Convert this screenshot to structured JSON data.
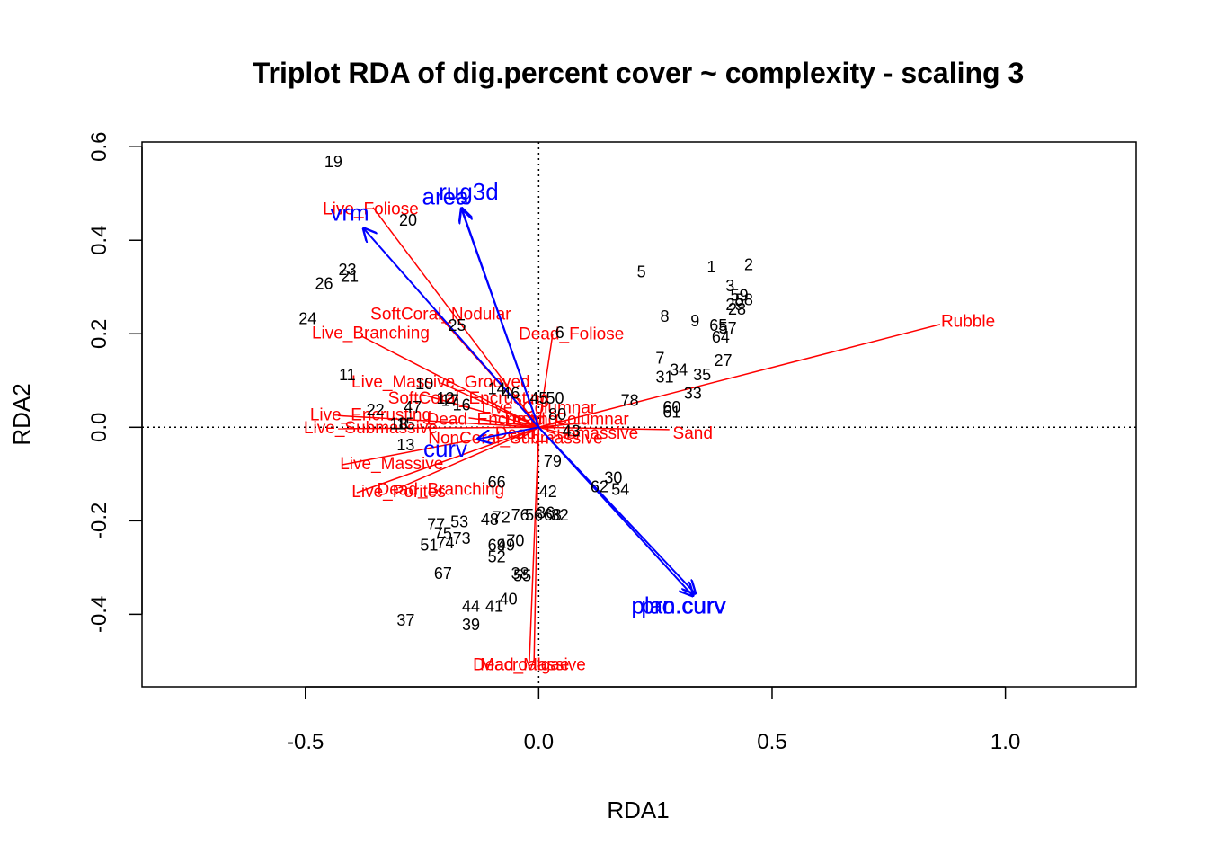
{
  "chart_data": {
    "type": "scatter",
    "title": "Triplot RDA of dig.percent cover ~ complexity  - scaling 3",
    "xlabel": "RDA1",
    "ylabel": "RDA2",
    "xlim": [
      -0.85,
      1.28
    ],
    "ylim": [
      -0.555,
      0.61
    ],
    "x_ticks": [
      -0.5,
      0.0,
      0.5,
      1.0
    ],
    "y_ticks": [
      -0.4,
      -0.2,
      0.0,
      0.2,
      0.4,
      0.6
    ],
    "x_tick_labels": [
      "-0.5",
      "0.0",
      "0.5",
      "1.0"
    ],
    "y_tick_labels": [
      "-0.4",
      "-0.2",
      "0.0",
      "0.2",
      "0.4",
      "0.6"
    ],
    "reference_lines": {
      "x": 0,
      "y": 0
    },
    "colors": {
      "species": "#ff0000",
      "env": "#0000ff",
      "sites": "#000000"
    },
    "sites": [
      {
        "label": "19",
        "x": -0.44,
        "y": 0.565
      },
      {
        "label": "20",
        "x": -0.28,
        "y": 0.44
      },
      {
        "label": "23",
        "x": -0.41,
        "y": 0.335
      },
      {
        "label": "21",
        "x": -0.405,
        "y": 0.32
      },
      {
        "label": "26",
        "x": -0.46,
        "y": 0.305
      },
      {
        "label": "24",
        "x": -0.495,
        "y": 0.23
      },
      {
        "label": "25",
        "x": -0.175,
        "y": 0.215
      },
      {
        "label": "11",
        "x": -0.41,
        "y": 0.11
      },
      {
        "label": "10",
        "x": -0.245,
        "y": 0.09
      },
      {
        "label": "22",
        "x": -0.35,
        "y": 0.035
      },
      {
        "label": "47",
        "x": -0.27,
        "y": 0.04
      },
      {
        "label": "12",
        "x": -0.2,
        "y": 0.06
      },
      {
        "label": "17",
        "x": -0.19,
        "y": 0.055
      },
      {
        "label": "16",
        "x": -0.165,
        "y": 0.045
      },
      {
        "label": "14",
        "x": -0.09,
        "y": 0.08
      },
      {
        "label": "46",
        "x": -0.06,
        "y": 0.07
      },
      {
        "label": "18",
        "x": -0.3,
        "y": 0.005
      },
      {
        "label": "15",
        "x": -0.285,
        "y": 0.005
      },
      {
        "label": "13",
        "x": -0.285,
        "y": -0.04
      },
      {
        "label": "45",
        "x": 0.0,
        "y": 0.06
      },
      {
        "label": "50",
        "x": 0.035,
        "y": 0.06
      },
      {
        "label": "80",
        "x": 0.04,
        "y": 0.025
      },
      {
        "label": "78",
        "x": 0.195,
        "y": 0.055
      },
      {
        "label": "43",
        "x": 0.07,
        "y": -0.01
      },
      {
        "label": "6",
        "x": 0.045,
        "y": 0.2
      },
      {
        "label": "5",
        "x": 0.22,
        "y": 0.33
      },
      {
        "label": "1",
        "x": 0.37,
        "y": 0.34
      },
      {
        "label": "2",
        "x": 0.45,
        "y": 0.345
      },
      {
        "label": "3",
        "x": 0.41,
        "y": 0.3
      },
      {
        "label": "59",
        "x": 0.43,
        "y": 0.28
      },
      {
        "label": "58",
        "x": 0.44,
        "y": 0.27
      },
      {
        "label": "29",
        "x": 0.42,
        "y": 0.26
      },
      {
        "label": "28",
        "x": 0.425,
        "y": 0.25
      },
      {
        "label": "8",
        "x": 0.27,
        "y": 0.235
      },
      {
        "label": "9",
        "x": 0.335,
        "y": 0.225
      },
      {
        "label": "65",
        "x": 0.385,
        "y": 0.215
      },
      {
        "label": "57",
        "x": 0.405,
        "y": 0.21
      },
      {
        "label": "64",
        "x": 0.39,
        "y": 0.19
      },
      {
        "label": "27",
        "x": 0.395,
        "y": 0.14
      },
      {
        "label": "7",
        "x": 0.26,
        "y": 0.145
      },
      {
        "label": "34",
        "x": 0.3,
        "y": 0.12
      },
      {
        "label": "31",
        "x": 0.27,
        "y": 0.105
      },
      {
        "label": "35",
        "x": 0.35,
        "y": 0.11
      },
      {
        "label": "33",
        "x": 0.33,
        "y": 0.07
      },
      {
        "label": "60",
        "x": 0.285,
        "y": 0.04
      },
      {
        "label": "61",
        "x": 0.285,
        "y": 0.03
      },
      {
        "label": "79",
        "x": 0.03,
        "y": -0.075
      },
      {
        "label": "30",
        "x": 0.16,
        "y": -0.11
      },
      {
        "label": "62",
        "x": 0.13,
        "y": -0.13
      },
      {
        "label": "54",
        "x": 0.175,
        "y": -0.135
      },
      {
        "label": "66",
        "x": -0.09,
        "y": -0.12
      },
      {
        "label": "42",
        "x": 0.02,
        "y": -0.14
      },
      {
        "label": "77",
        "x": -0.22,
        "y": -0.21
      },
      {
        "label": "53",
        "x": -0.17,
        "y": -0.205
      },
      {
        "label": "48",
        "x": -0.105,
        "y": -0.2
      },
      {
        "label": "72",
        "x": -0.08,
        "y": -0.195
      },
      {
        "label": "76",
        "x": -0.04,
        "y": -0.19
      },
      {
        "label": "56",
        "x": -0.01,
        "y": -0.19
      },
      {
        "label": "36",
        "x": 0.015,
        "y": -0.185
      },
      {
        "label": "68",
        "x": 0.03,
        "y": -0.19
      },
      {
        "label": "32",
        "x": 0.045,
        "y": -0.19
      },
      {
        "label": "75",
        "x": -0.205,
        "y": -0.23
      },
      {
        "label": "73",
        "x": -0.165,
        "y": -0.24
      },
      {
        "label": "51",
        "x": -0.235,
        "y": -0.255
      },
      {
        "label": "74",
        "x": -0.2,
        "y": -0.25
      },
      {
        "label": "70",
        "x": -0.05,
        "y": -0.245
      },
      {
        "label": "69",
        "x": -0.09,
        "y": -0.255
      },
      {
        "label": "49",
        "x": -0.07,
        "y": -0.255
      },
      {
        "label": "52",
        "x": -0.09,
        "y": -0.28
      },
      {
        "label": "67",
        "x": -0.205,
        "y": -0.315
      },
      {
        "label": "38",
        "x": -0.04,
        "y": -0.315
      },
      {
        "label": "55",
        "x": -0.035,
        "y": -0.32
      },
      {
        "label": "40",
        "x": -0.065,
        "y": -0.37
      },
      {
        "label": "44",
        "x": -0.145,
        "y": -0.385
      },
      {
        "label": "41",
        "x": -0.095,
        "y": -0.385
      },
      {
        "label": "37",
        "x": -0.285,
        "y": -0.415
      },
      {
        "label": "39",
        "x": -0.145,
        "y": -0.425
      }
    ],
    "species": [
      {
        "label": "Live_Foliose",
        "x": -0.355,
        "y": 0.47,
        "lx": -0.36,
        "ly": 0.465
      },
      {
        "label": "SoftCoral_Nodular",
        "x": -0.22,
        "y": 0.245,
        "lx": -0.21,
        "ly": 0.24
      },
      {
        "label": "Live_Branching",
        "x": -0.38,
        "y": 0.195,
        "lx": -0.36,
        "ly": 0.2
      },
      {
        "label": "Dead_Foliose",
        "x": 0.03,
        "y": 0.2,
        "lx": 0.07,
        "ly": 0.198
      },
      {
        "label": "Rubble",
        "x": 0.86,
        "y": 0.22,
        "lx": 0.92,
        "ly": 0.225
      },
      {
        "label": "Live_Massive_Grooved",
        "x": -0.21,
        "y": 0.095,
        "lx": -0.21,
        "ly": 0.095
      },
      {
        "label": "SoftCoral_Encrusting",
        "x": -0.25,
        "y": 0.07,
        "lx": -0.15,
        "ly": 0.06
      },
      {
        "label": "Live_Encrusting",
        "x": -0.43,
        "y": 0.025,
        "lx": -0.36,
        "ly": 0.025
      },
      {
        "label": "Live_Submassive",
        "x": -0.43,
        "y": -0.003,
        "lx": -0.36,
        "ly": -0.003
      },
      {
        "label": "NonCoral_Submassive",
        "x": -0.05,
        "y": -0.03,
        "lx": -0.05,
        "ly": -0.025
      },
      {
        "label": "Sand",
        "x": 0.28,
        "y": -0.005,
        "lx": 0.33,
        "ly": -0.015
      },
      {
        "label": "Live_Massive",
        "x": -0.42,
        "y": -0.08,
        "lx": -0.315,
        "ly": -0.08
      },
      {
        "label": "Live_Porites",
        "x": -0.39,
        "y": -0.14,
        "lx": -0.3,
        "ly": -0.14
      },
      {
        "label": "Dead_Branching",
        "x": -0.3,
        "y": -0.13,
        "lx": -0.21,
        "ly": -0.135
      },
      {
        "label": "Macroalgae",
        "x": -0.02,
        "y": -0.5,
        "lx": -0.03,
        "ly": -0.51
      },
      {
        "label": "Dead_Massive",
        "x": -0.01,
        "y": -0.5,
        "lx": -0.02,
        "ly": -0.51
      },
      {
        "label": "Dead_Columnar",
        "x": 0.1,
        "y": 0.01,
        "lx": 0.06,
        "ly": 0.015
      },
      {
        "label": "Live_Columnar",
        "x": 0.05,
        "y": 0.015,
        "lx": 0.0,
        "ly": 0.04
      },
      {
        "label": "Dead_Submassive",
        "x": 0.08,
        "y": -0.02,
        "lx": 0.06,
        "ly": -0.015
      },
      {
        "label": "Dead_Encrusting",
        "x": -0.15,
        "y": 0.02,
        "lx": -0.1,
        "ly": 0.015
      }
    ],
    "env": [
      {
        "label": "vrm",
        "x": -0.375,
        "y": 0.425,
        "lx": -0.405,
        "ly": 0.455
      },
      {
        "label": "area",
        "x": -0.165,
        "y": 0.465,
        "lx": -0.2,
        "ly": 0.49
      },
      {
        "label": "rug3d",
        "x": -0.165,
        "y": 0.468,
        "lx": -0.15,
        "ly": 0.5
      },
      {
        "label": "curv",
        "x": -0.13,
        "y": -0.025,
        "lx": -0.2,
        "ly": -0.05
      },
      {
        "label": "plan.curv",
        "x": 0.335,
        "y": -0.355,
        "lx": 0.3,
        "ly": -0.385
      },
      {
        "label": "pro.curv",
        "x": 0.33,
        "y": -0.36,
        "lx": 0.31,
        "ly": -0.385
      }
    ]
  }
}
